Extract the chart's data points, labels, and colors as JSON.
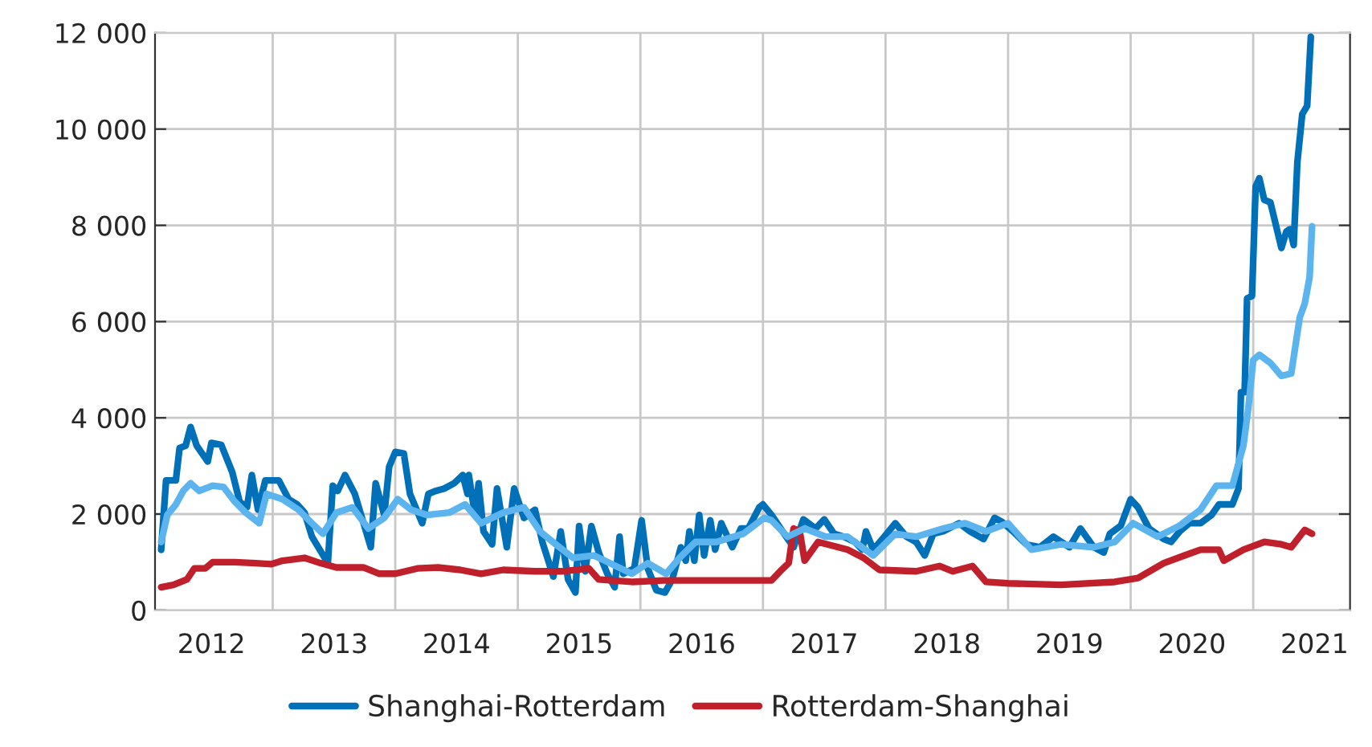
{
  "chart_data": {
    "type": "line",
    "xlim": [
      2012.04,
      2021.79
    ],
    "xticks": [
      {
        "value": 2012.5,
        "label": "2012"
      },
      {
        "value": 2013,
        "label": null
      },
      {
        "value": 2013.5,
        "label": "2013"
      },
      {
        "value": 2014,
        "label": null
      },
      {
        "value": 2014.5,
        "label": "2014"
      },
      {
        "value": 2015,
        "label": null
      },
      {
        "value": 2015.5,
        "label": "2015"
      },
      {
        "value": 2016,
        "label": null
      },
      {
        "value": 2016.5,
        "label": "2016"
      },
      {
        "value": 2017,
        "label": null
      },
      {
        "value": 2017.5,
        "label": "2017"
      },
      {
        "value": 2018,
        "label": null
      },
      {
        "value": 2018.5,
        "label": "2018"
      },
      {
        "value": 2019,
        "label": null
      },
      {
        "value": 2019.5,
        "label": "2019"
      },
      {
        "value": 2020,
        "label": null
      },
      {
        "value": 2020.5,
        "label": "2020"
      },
      {
        "value": 2021,
        "label": null
      },
      {
        "value": 2021.5,
        "label": "2021"
      }
    ],
    "ylim": [
      0,
      12000
    ],
    "yticks": [
      0,
      {
        "value": 2000,
        "label": "2 000"
      },
      {
        "value": 4000,
        "label": "4 000"
      },
      {
        "value": 6000,
        "label": "6 000"
      },
      {
        "value": 8000,
        "label": "8 000"
      },
      {
        "value": 10000,
        "label": "10 000"
      },
      {
        "value": 12000,
        "label": "12 000"
      }
    ],
    "grid": true,
    "legend": "bottom",
    "marker": "none",
    "line_style": "solid",
    "series": [
      {
        "name": "Shanghai-Rotterdam",
        "color": "#0070b8",
        "x": [
          2012.09,
          2012.13,
          2012.21,
          2012.24,
          2012.29,
          2012.33,
          2012.38,
          2012.47,
          2012.5,
          2012.58,
          2012.67,
          2012.73,
          2012.79,
          2012.83,
          2012.88,
          2012.94,
          2013.05,
          2013.13,
          2013.2,
          2013.26,
          2013.32,
          2013.45,
          2013.49,
          2013.53,
          2013.59,
          2013.67,
          2013.8,
          2013.84,
          2013.91,
          2013.95,
          2014.0,
          2014.07,
          2014.12,
          2014.22,
          2014.27,
          2014.33,
          2014.4,
          2014.48,
          2014.55,
          2014.59,
          2014.6,
          2014.65,
          2014.68,
          2014.72,
          2014.79,
          2014.83,
          2014.91,
          2014.97,
          2015.05,
          2015.14,
          2015.2,
          2015.29,
          2015.35,
          2015.41,
          2015.47,
          2015.5,
          2015.55,
          2015.6,
          2015.66,
          2015.73,
          2015.79,
          2015.83,
          2015.86,
          2015.95,
          2016.01,
          2016.06,
          2016.13,
          2016.2,
          2016.26,
          2016.33,
          2016.37,
          2016.4,
          2016.44,
          2016.48,
          2016.52,
          2016.57,
          2016.61,
          2016.66,
          2016.75,
          2016.82,
          2016.88,
          2016.97,
          2017.0,
          2017.07,
          2017.16,
          2017.25,
          2017.33,
          2017.43,
          2017.5,
          2017.58,
          2017.66,
          2017.75,
          2017.81,
          2017.84,
          2017.9,
          2017.99,
          2018.08,
          2018.17,
          2018.25,
          2018.32,
          2018.39,
          2018.47,
          2018.6,
          2018.69,
          2018.8,
          2018.89,
          2018.95,
          2019.04,
          2019.15,
          2019.26,
          2019.37,
          2019.5,
          2019.59,
          2019.7,
          2019.78,
          2019.83,
          2019.92,
          2020.0,
          2020.06,
          2020.15,
          2020.27,
          2020.33,
          2020.4,
          2020.48,
          2020.57,
          2020.66,
          2020.72,
          2020.83,
          2020.88,
          2020.9,
          2020.93,
          2020.95,
          2020.99,
          2021.02,
          2021.05,
          2021.09,
          2021.14,
          2021.23,
          2021.27,
          2021.3,
          2021.33,
          2021.36,
          2021.4,
          2021.44,
          2021.47
        ],
        "values": [
          1255,
          2700,
          2700,
          3370,
          3420,
          3810,
          3420,
          3090,
          3480,
          3440,
          2870,
          2260,
          2140,
          2810,
          2090,
          2700,
          2700,
          2310,
          2200,
          2030,
          1530,
          980,
          2590,
          2480,
          2810,
          2420,
          1310,
          2640,
          1980,
          2980,
          3290,
          3260,
          2420,
          1810,
          2420,
          2480,
          2530,
          2640,
          2810,
          2420,
          2810,
          1980,
          2640,
          1640,
          1370,
          2530,
          1310,
          2530,
          1920,
          2090,
          1420,
          700,
          1640,
          640,
          370,
          1750,
          810,
          1750,
          1200,
          760,
          480,
          1530,
          760,
          870,
          1870,
          870,
          420,
          370,
          640,
          1310,
          1030,
          1640,
          1030,
          1980,
          1140,
          1870,
          1260,
          1810,
          1310,
          1700,
          1700,
          2140,
          2200,
          1980,
          1640,
          1310,
          1890,
          1700,
          1890,
          1590,
          1530,
          1420,
          1260,
          1640,
          1260,
          1530,
          1810,
          1530,
          1420,
          1140,
          1590,
          1640,
          1810,
          1640,
          1480,
          1920,
          1840,
          1640,
          1370,
          1310,
          1530,
          1310,
          1700,
          1310,
          1200,
          1590,
          1760,
          2310,
          2140,
          1700,
          1480,
          1420,
          1640,
          1810,
          1810,
          1980,
          2200,
          2200,
          2530,
          4530,
          4530,
          6480,
          6530,
          8810,
          8980,
          8530,
          8480,
          7530,
          7870,
          7920,
          7590,
          9310,
          10310,
          10480,
          11920
        ]
      },
      {
        "name": "Rotterdam-Shanghai",
        "color": "#c0202c",
        "x": [
          2012.09,
          2012.19,
          2012.3,
          2012.36,
          2012.45,
          2012.51,
          2012.69,
          2012.86,
          2012.99,
          2013.08,
          2013.26,
          2013.39,
          2013.52,
          2013.74,
          2013.87,
          2014.0,
          2014.18,
          2014.35,
          2014.53,
          2014.7,
          2014.88,
          2015.14,
          2015.36,
          2015.58,
          2015.66,
          2015.93,
          2016.19,
          2016.54,
          2016.97,
          2017.07,
          2017.14,
          2017.21,
          2017.25,
          2017.3,
          2017.34,
          2017.45,
          2017.69,
          2017.82,
          2017.95,
          2018.25,
          2018.44,
          2018.55,
          2018.71,
          2018.82,
          2019.0,
          2019.43,
          2019.87,
          2020.06,
          2020.27,
          2020.44,
          2020.57,
          2020.72,
          2020.76,
          2020.92,
          2021.09,
          2021.23,
          2021.31,
          2021.42,
          2021.48
        ],
        "values": [
          480,
          530,
          640,
          870,
          870,
          1000,
          1000,
          980,
          960,
          1030,
          1090,
          980,
          890,
          890,
          760,
          760,
          870,
          890,
          840,
          760,
          840,
          810,
          810,
          870,
          640,
          590,
          620,
          620,
          620,
          620,
          810,
          980,
          1700,
          1640,
          1030,
          1420,
          1260,
          1090,
          840,
          810,
          920,
          810,
          920,
          590,
          560,
          530,
          590,
          670,
          980,
          1140,
          1260,
          1260,
          1030,
          1260,
          1420,
          1370,
          1310,
          1670,
          1590
        ]
      },
      {
        "color": "#5bb4ee",
        "x": [
          2012.09,
          2012.14,
          2012.21,
          2012.27,
          2012.33,
          2012.4,
          2012.51,
          2012.6,
          2012.69,
          2012.78,
          2012.89,
          2012.95,
          2013.08,
          2013.21,
          2013.32,
          2013.41,
          2013.52,
          2013.65,
          2013.78,
          2013.91,
          2014.02,
          2014.13,
          2014.26,
          2014.44,
          2014.57,
          2014.7,
          2014.88,
          2015.05,
          2015.18,
          2015.31,
          2015.45,
          2015.62,
          2015.75,
          2015.93,
          2016.06,
          2016.21,
          2016.32,
          2016.45,
          2016.62,
          2016.84,
          2017.01,
          2017.07,
          2017.2,
          2017.34,
          2017.51,
          2017.69,
          2017.9,
          2018.08,
          2018.25,
          2018.47,
          2018.65,
          2018.82,
          2019.0,
          2019.19,
          2019.43,
          2019.7,
          2019.87,
          2020.02,
          2020.22,
          2020.4,
          2020.57,
          2020.7,
          2020.83,
          2020.92,
          2020.96,
          2021.0,
          2021.05,
          2021.14,
          2021.23,
          2021.31,
          2021.38,
          2021.42,
          2021.46,
          2021.48
        ],
        "values": [
          1420,
          1980,
          2200,
          2480,
          2640,
          2480,
          2590,
          2560,
          2260,
          2030,
          1810,
          2420,
          2310,
          2090,
          1810,
          1590,
          2030,
          2140,
          1700,
          1920,
          2310,
          2090,
          1980,
          2030,
          2200,
          1810,
          2030,
          2140,
          1640,
          1370,
          1090,
          1140,
          980,
          760,
          980,
          760,
          1090,
          1420,
          1420,
          1590,
          1920,
          1870,
          1530,
          1700,
          1530,
          1530,
          1140,
          1590,
          1530,
          1700,
          1810,
          1640,
          1810,
          1260,
          1370,
          1310,
          1420,
          1810,
          1530,
          1760,
          2090,
          2590,
          2590,
          3420,
          4200,
          5200,
          5310,
          5140,
          4870,
          4920,
          6090,
          6370,
          6920,
          7980
        ]
      }
    ]
  }
}
